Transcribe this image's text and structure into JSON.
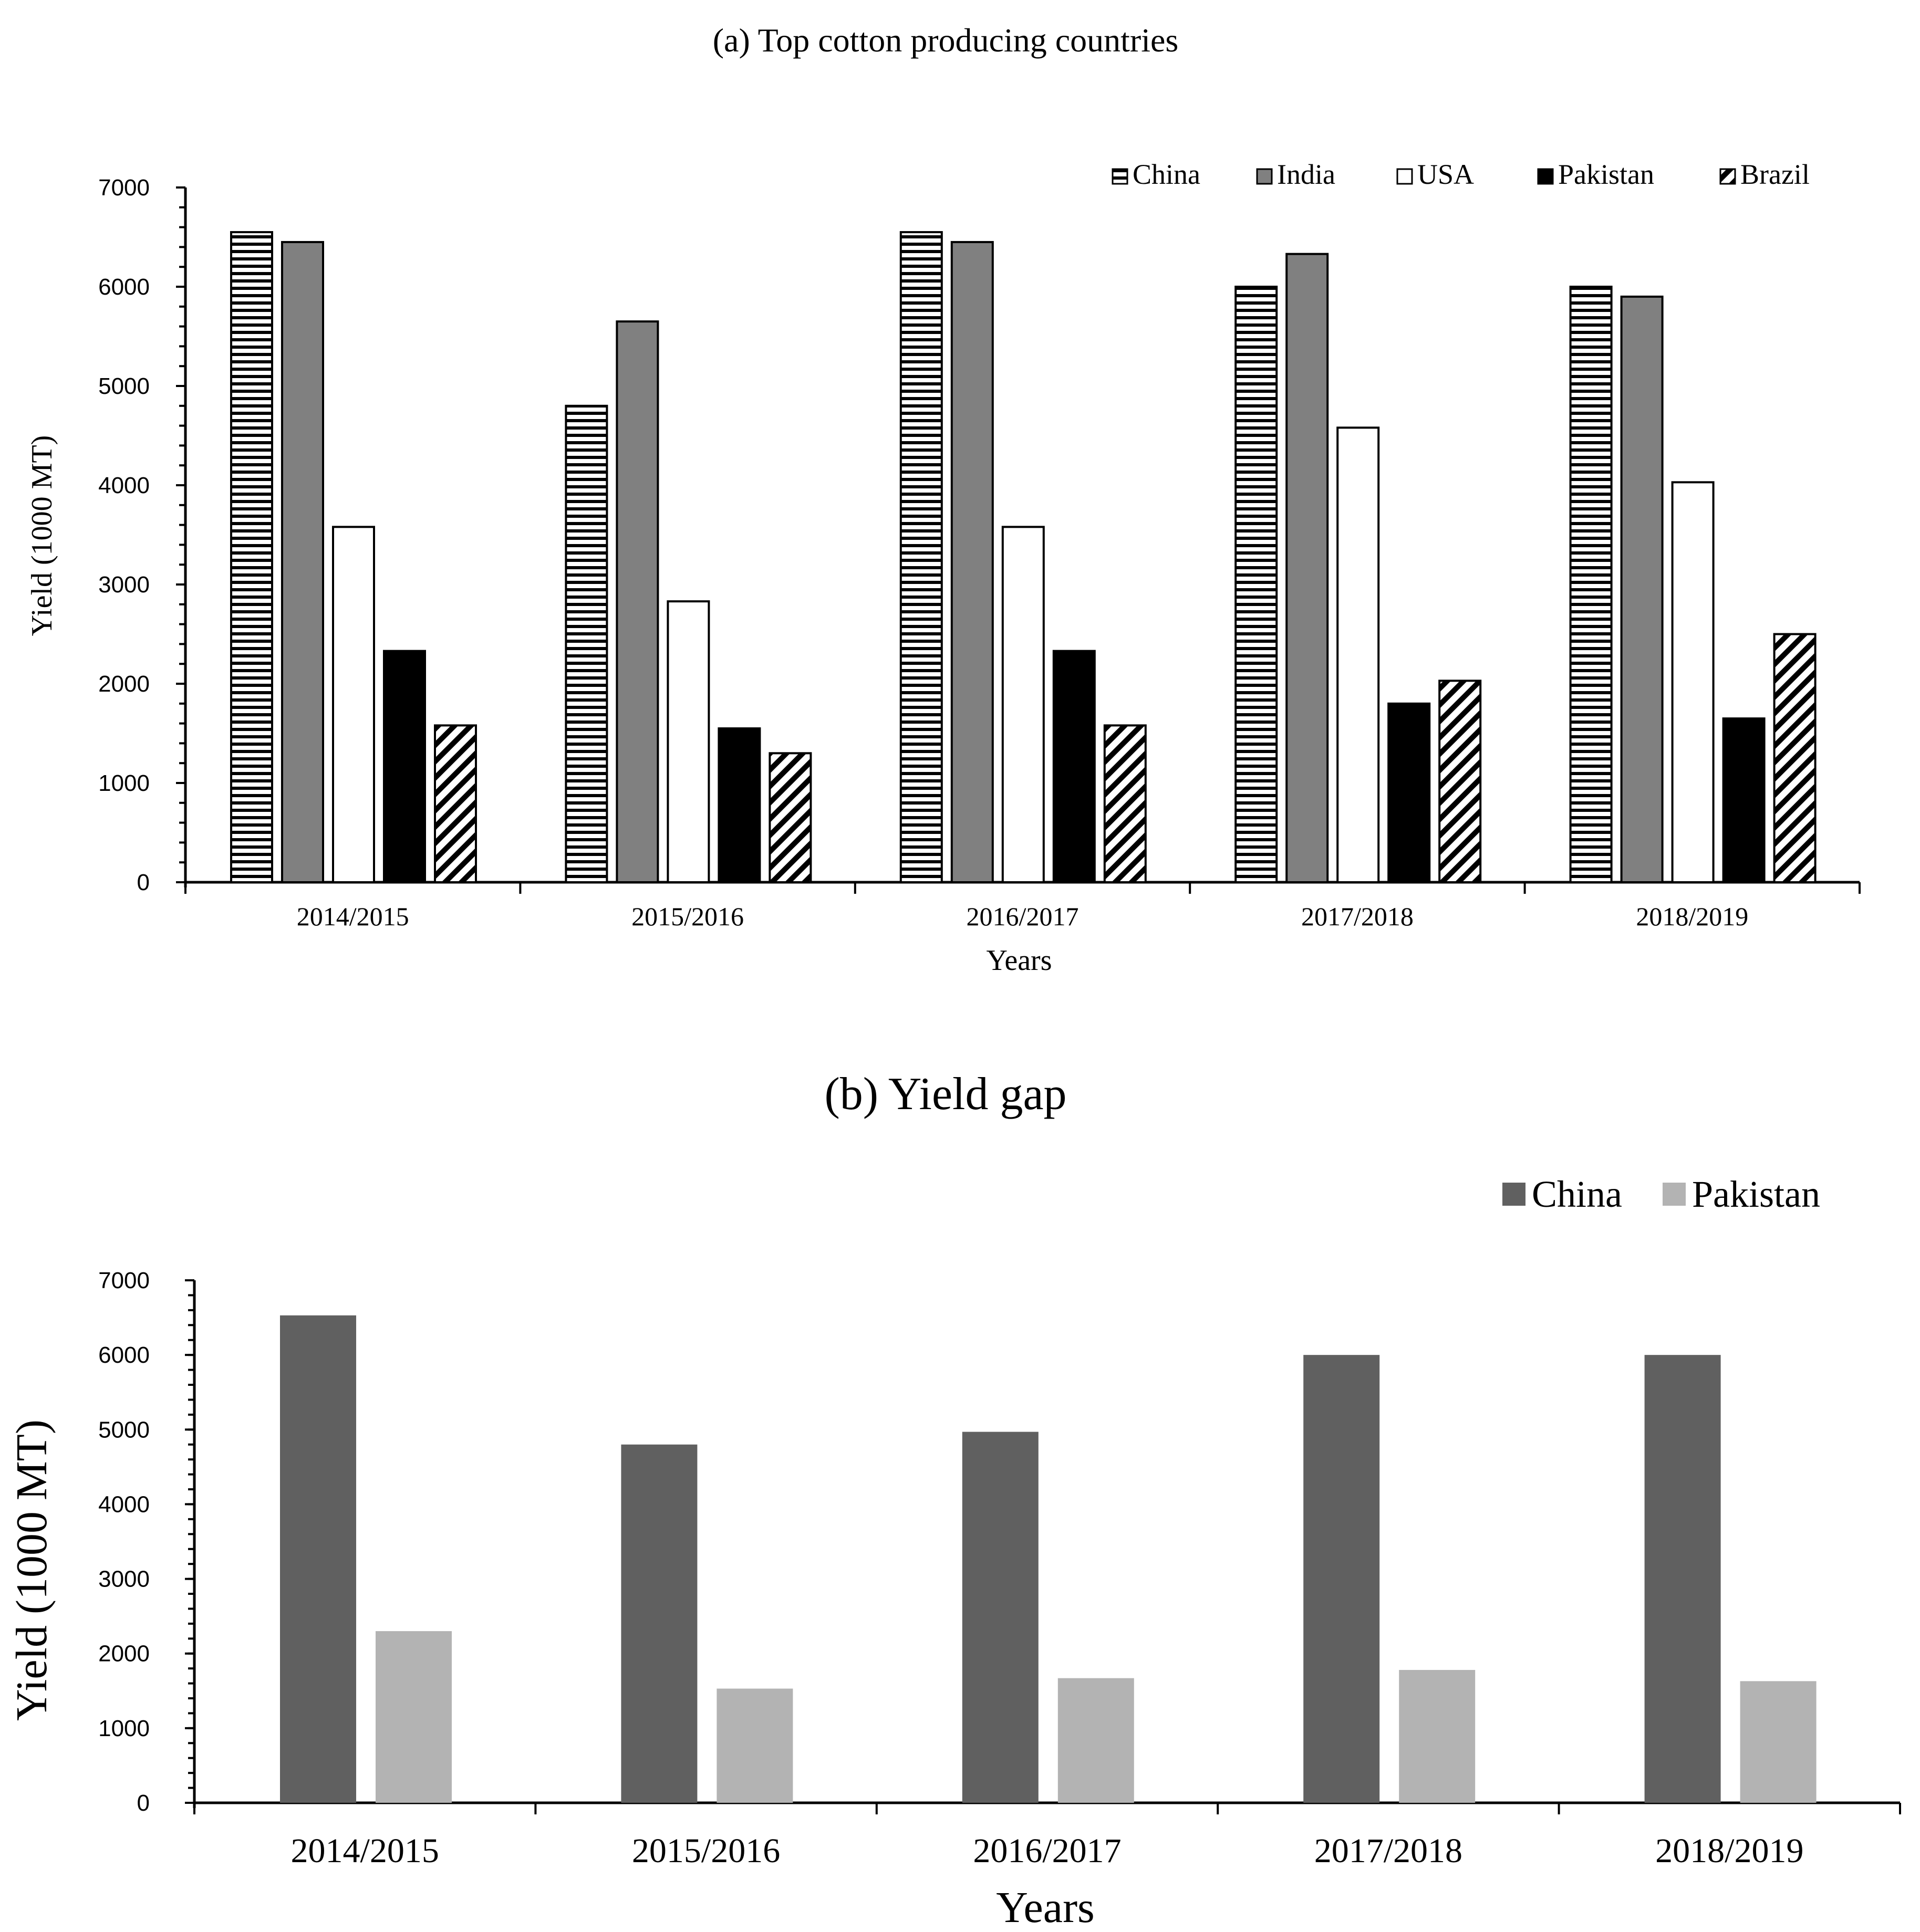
{
  "colors": {
    "china_a": "#ffffff",
    "india_a": "#808080",
    "usa_a": "#ffffff",
    "pakistan_a": "#000000",
    "brazil_a": "#ffffff",
    "china_b": "#606060",
    "pakistan_b": "#b3b3b3",
    "axis": "#000000"
  },
  "chart_data": [
    {
      "type": "bar",
      "title": "(a) Top cotton producing countries",
      "xlabel": "Years",
      "ylabel": "Yield (1000 MT)",
      "ylim": [
        0,
        7000
      ],
      "yticks": [
        "0",
        "1000",
        "2000",
        "3000",
        "4000",
        "5000",
        "6000",
        "7000"
      ],
      "legend_position": "top-right",
      "categories": [
        "2014/2015",
        "2015/2016",
        "2016/2017",
        "2017/2018",
        "2018/2019"
      ],
      "series": [
        {
          "name": "China",
          "pattern": "horizontal-stripes",
          "values": [
            6550,
            4800,
            6550,
            6000,
            6000
          ]
        },
        {
          "name": "India",
          "pattern": "solid-gray",
          "values": [
            6450,
            5650,
            6450,
            6330,
            5900
          ]
        },
        {
          "name": "USA",
          "pattern": "solid-white",
          "values": [
            3580,
            2830,
            3580,
            4580,
            4030
          ]
        },
        {
          "name": "Pakistan",
          "pattern": "solid-black",
          "values": [
            2330,
            1550,
            2330,
            1800,
            1650
          ]
        },
        {
          "name": "Brazil",
          "pattern": "diagonal-hatch",
          "values": [
            1580,
            1300,
            1580,
            2030,
            2500
          ]
        }
      ]
    },
    {
      "type": "bar",
      "title": "(b) Yield gap",
      "xlabel": "Years",
      "ylabel": "Yield (1000 MT)",
      "ylim": [
        0,
        7000
      ],
      "yticks": [
        "0",
        "1000",
        "2000",
        "3000",
        "4000",
        "5000",
        "6000",
        "7000"
      ],
      "legend_position": "top-right",
      "categories": [
        "2014/2015",
        "2015/2016",
        "2016/2017",
        "2017/2018",
        "2018/2019"
      ],
      "series": [
        {
          "name": "China",
          "values": [
            6530,
            4800,
            4970,
            6000,
            6000
          ]
        },
        {
          "name": "Pakistan",
          "values": [
            2300,
            1530,
            1670,
            1780,
            1630
          ]
        }
      ]
    }
  ]
}
